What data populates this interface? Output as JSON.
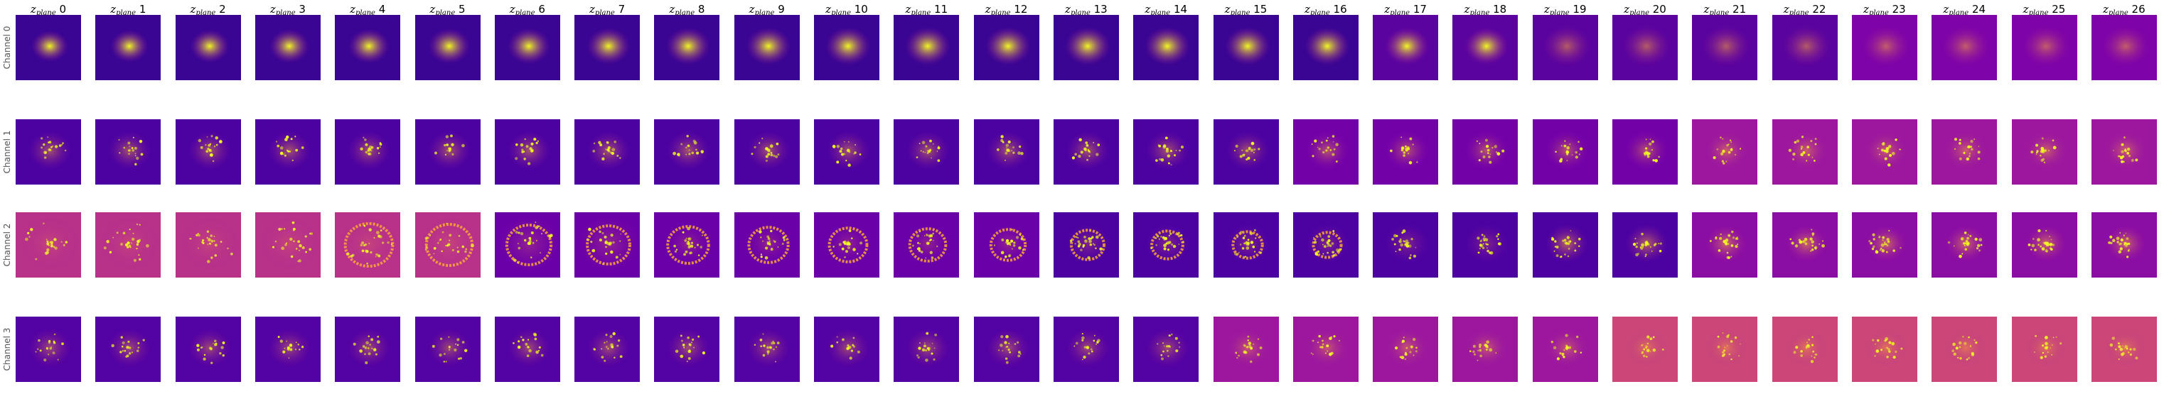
{
  "figure": {
    "column_prefix": "z",
    "column_subscript": "plane",
    "columns": [
      "0",
      "1",
      "2",
      "3",
      "4",
      "5",
      "6",
      "7",
      "8",
      "9",
      "10",
      "11",
      "12",
      "13",
      "14",
      "15",
      "16",
      "17",
      "18",
      "19",
      "20",
      "21",
      "22",
      "23",
      "24",
      "25",
      "26"
    ],
    "rows": [
      "Channel 0",
      "Channel 1",
      "Channel 2",
      "Channel 3"
    ],
    "colormap": "plasma",
    "colors": {
      "dark": "#3a0592",
      "mid": "#9c179e",
      "bright": "#f0f921",
      "orange": "#fca636"
    }
  }
}
